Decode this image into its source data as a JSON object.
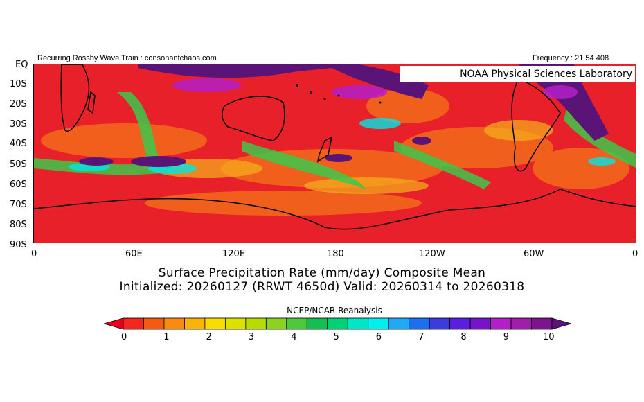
{
  "header": {
    "left_text": "Recurring Rossby Wave Train : consonantchaos.com",
    "right_text": "Frequency : 21 54 408",
    "badge": "NOAA Physical Sciences Laboratory"
  },
  "map": {
    "lat_labels": [
      "EQ",
      "10S",
      "20S",
      "30S",
      "40S",
      "50S",
      "60S",
      "70S",
      "80S",
      "90S"
    ],
    "lon_labels": [
      "0",
      "60E",
      "120E",
      "180",
      "120W",
      "60W",
      "0"
    ]
  },
  "titles": {
    "line1": "Surface Precipitation Rate (mm/day) Composite Mean",
    "line2": "Initialized: 20260127 (RRWT 4650d) Valid: 20260314 to 20260318"
  },
  "source": "NCEP/NCAR Reanalysis",
  "colorbar": {
    "labels": [
      "0",
      "1",
      "2",
      "3",
      "4",
      "5",
      "6",
      "7",
      "8",
      "9",
      "10"
    ],
    "colors": [
      "#e6001c",
      "#f0281e",
      "#f55a14",
      "#f98c0f",
      "#f9b40a",
      "#f9dc00",
      "#dde100",
      "#b9dc00",
      "#8cd21e",
      "#50c83c",
      "#14be50",
      "#00d278",
      "#00e6c8",
      "#00f0f0",
      "#1eaaf5",
      "#1e6ef0",
      "#3c3cdc",
      "#5a1edc",
      "#7814c8",
      "#b41ec8",
      "#a01eaa",
      "#7d148c",
      "#5a1478"
    ]
  }
}
